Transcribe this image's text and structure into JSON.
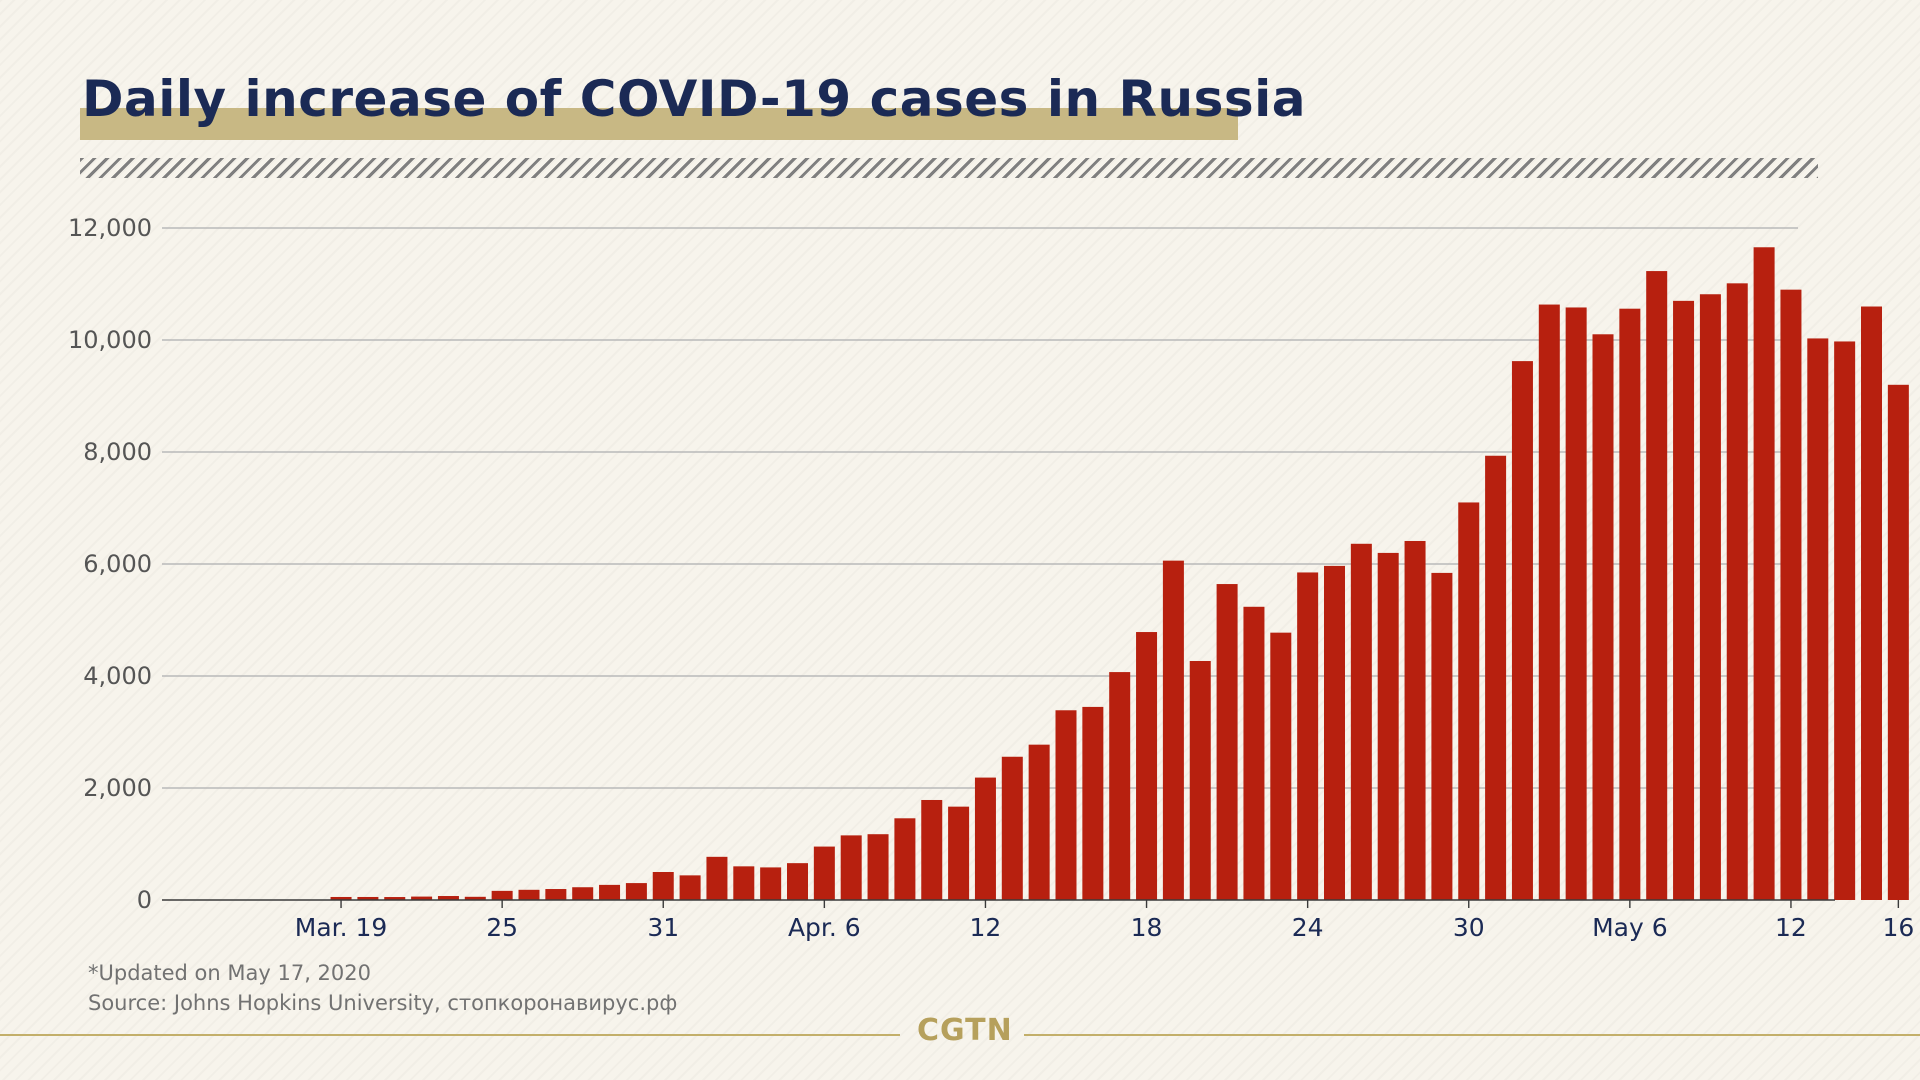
{
  "title": "Daily increase of COVID-19 cases in Russia",
  "footnote": {
    "updated": "*Updated on May 17, 2020",
    "source": "Source: Johns Hopkins University, стопкоронавирус.рф"
  },
  "brand": "CGTN",
  "colors": {
    "bar": "#b7200f",
    "title": "#1b2a55",
    "title_band": "#c8b884",
    "brand": "#b6a05c",
    "grid": "#b9b9b9",
    "background": "#f7f4ec"
  },
  "chart_data": {
    "type": "bar",
    "title": "Daily increase of COVID-19 cases in Russia",
    "xlabel": "",
    "ylabel": "",
    "ylim": [
      0,
      12000
    ],
    "grid": true,
    "legend": "none",
    "yticks": [
      0,
      2000,
      4000,
      6000,
      8000,
      10000,
      12000
    ],
    "ytick_labels": [
      "0",
      "2,000",
      "4,000",
      "6,000",
      "8,000",
      "10,000",
      "12,000"
    ],
    "xtick_labels": [
      {
        "category": "Mar. 19",
        "label": "Mar. 19"
      },
      {
        "category": "Mar. 25",
        "label": "25"
      },
      {
        "category": "Mar. 31",
        "label": "31"
      },
      {
        "category": "Apr. 6",
        "label": "Apr. 6"
      },
      {
        "category": "Apr. 12",
        "label": "12"
      },
      {
        "category": "Apr. 18",
        "label": "18"
      },
      {
        "category": "Apr. 24",
        "label": "24"
      },
      {
        "category": "Apr. 30",
        "label": "30"
      },
      {
        "category": "May 6",
        "label": "May 6"
      },
      {
        "category": "May 12",
        "label": "12"
      },
      {
        "category": "May 16",
        "label": "16"
      }
    ],
    "categories": [
      "Mar. 16",
      "Mar. 17",
      "Mar. 18",
      "Mar. 19",
      "Mar. 20",
      "Mar. 21",
      "Mar. 22",
      "Mar. 23",
      "Mar. 24",
      "Mar. 25",
      "Mar. 26",
      "Mar. 27",
      "Mar. 28",
      "Mar. 29",
      "Mar. 30",
      "Mar. 31",
      "Apr. 1",
      "Apr. 2",
      "Apr. 3",
      "Apr. 4",
      "Apr. 5",
      "Apr. 6",
      "Apr. 7",
      "Apr. 8",
      "Apr. 9",
      "Apr. 10",
      "Apr. 11",
      "Apr. 12",
      "Apr. 13",
      "Apr. 14",
      "Apr. 15",
      "Apr. 16",
      "Apr. 17",
      "Apr. 18",
      "Apr. 19",
      "Apr. 20",
      "Apr. 21",
      "Apr. 22",
      "Apr. 23",
      "Apr. 24",
      "Apr. 25",
      "Apr. 26",
      "Apr. 27",
      "Apr. 28",
      "Apr. 29",
      "Apr. 30",
      "May 1",
      "May 2",
      "May 3",
      "May 4",
      "May 5",
      "May 6",
      "May 7",
      "May 8",
      "May 9",
      "May 10",
      "May 11",
      "May 12",
      "May 13",
      "May 14",
      "May 15",
      "May 16"
    ],
    "values": [
      0,
      0,
      0,
      54,
      54,
      53,
      61,
      71,
      57,
      163,
      182,
      196,
      228,
      270,
      302,
      500,
      440,
      771,
      601,
      582,
      658,
      954,
      1154,
      1175,
      1459,
      1786,
      1667,
      2186,
      2558,
      2774,
      3388,
      3448,
      4070,
      4785,
      6060,
      4268,
      5642,
      5236,
      4774,
      5849,
      5966,
      6361,
      6198,
      6411,
      5841,
      7099,
      7933,
      9623,
      10633,
      10581,
      10102,
      10559,
      11231,
      10699,
      10817,
      11012,
      11656,
      10899,
      10028,
      9974,
      10598,
      9200
    ]
  }
}
